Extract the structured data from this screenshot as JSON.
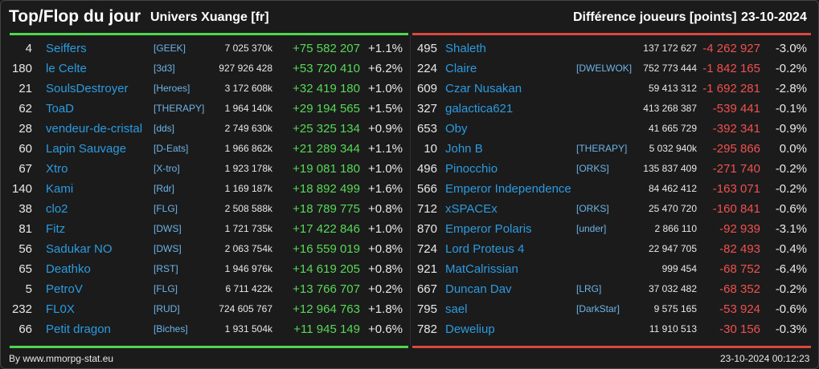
{
  "header": {
    "title": "Top/Flop du jour",
    "universe": "Univers Xuange [fr]",
    "metric": "Différence joueurs [points]",
    "date": "23-10-2024"
  },
  "colors": {
    "gain": "#58d858",
    "loss": "#f05050",
    "name": "#2b9be0",
    "top_bar": "#4fd64f",
    "flop_bar": "#d9483e"
  },
  "top": [
    {
      "rank": "4",
      "name": "Seiffers",
      "alliance": "[GEEK]",
      "points": "7 025 370k",
      "diff": "+75 582 207",
      "pct": "+1.1%"
    },
    {
      "rank": "180",
      "name": "le Celte",
      "alliance": "[3d3]",
      "points": "927 926 428",
      "diff": "+53 720 410",
      "pct": "+6.2%"
    },
    {
      "rank": "21",
      "name": "SoulsDestroyer",
      "alliance": "[Heroes]",
      "points": "3 172 608k",
      "diff": "+32 419 180",
      "pct": "+1.0%"
    },
    {
      "rank": "62",
      "name": "ToaD",
      "alliance": "[THERAPY]",
      "points": "1 964 140k",
      "diff": "+29 194 565",
      "pct": "+1.5%"
    },
    {
      "rank": "28",
      "name": "vendeur-de-cristal",
      "alliance": "[dds]",
      "points": "2 749 630k",
      "diff": "+25 325 134",
      "pct": "+0.9%"
    },
    {
      "rank": "60",
      "name": "Lapin Sauvage",
      "alliance": "[D-Eats]",
      "points": "1 966 862k",
      "diff": "+21 289 344",
      "pct": "+1.1%"
    },
    {
      "rank": "67",
      "name": "Xtro",
      "alliance": "[X-tro]",
      "points": "1 923 178k",
      "diff": "+19 081 180",
      "pct": "+1.0%"
    },
    {
      "rank": "140",
      "name": "Kami",
      "alliance": "[Rdr]",
      "points": "1 169 187k",
      "diff": "+18 892 499",
      "pct": "+1.6%"
    },
    {
      "rank": "38",
      "name": "clo2",
      "alliance": "[FLG]",
      "points": "2 508 588k",
      "diff": "+18 789 775",
      "pct": "+0.8%"
    },
    {
      "rank": "81",
      "name": "Fitz",
      "alliance": "[DWS]",
      "points": "1 721 735k",
      "diff": "+17 422 846",
      "pct": "+1.0%"
    },
    {
      "rank": "56",
      "name": "Sadukar NO",
      "alliance": "[DWS]",
      "points": "2 063 754k",
      "diff": "+16 559 019",
      "pct": "+0.8%"
    },
    {
      "rank": "65",
      "name": "Deathko",
      "alliance": "[RST]",
      "points": "1 946 976k",
      "diff": "+14 619 205",
      "pct": "+0.8%"
    },
    {
      "rank": "5",
      "name": "PetroV",
      "alliance": "[FLG]",
      "points": "6 711 422k",
      "diff": "+13 766 707",
      "pct": "+0.2%"
    },
    {
      "rank": "232",
      "name": "FL0X",
      "alliance": "[RUD]",
      "points": "724 605 767",
      "diff": "+12 964 763",
      "pct": "+1.8%"
    },
    {
      "rank": "66",
      "name": "Petit dragon",
      "alliance": "[Biches]",
      "points": "1 931 504k",
      "diff": "+11 945 149",
      "pct": "+0.6%"
    }
  ],
  "flop": [
    {
      "rank": "495",
      "name": "Shaleth",
      "alliance": "",
      "points": "137 172 627",
      "diff": "-4 262 927",
      "pct": "-3.0%"
    },
    {
      "rank": "224",
      "name": "Claire",
      "alliance": "[DWELWOK]",
      "points": "752 773 444",
      "diff": "-1 842 165",
      "pct": "-0.2%"
    },
    {
      "rank": "609",
      "name": "Czar Nusakan",
      "alliance": "",
      "points": "59 413 312",
      "diff": "-1 692 281",
      "pct": "-2.8%"
    },
    {
      "rank": "327",
      "name": "galactica621",
      "alliance": "",
      "points": "413 268 387",
      "diff": "-539 441",
      "pct": "-0.1%"
    },
    {
      "rank": "653",
      "name": "Oby",
      "alliance": "",
      "points": "41 665 729",
      "diff": "-392 341",
      "pct": "-0.9%"
    },
    {
      "rank": "10",
      "name": "John B",
      "alliance": "[THERAPY]",
      "points": "5 032 940k",
      "diff": "-295 866",
      "pct": "0.0%"
    },
    {
      "rank": "496",
      "name": "Pinocchio",
      "alliance": "[ORKS]",
      "points": "135 837 409",
      "diff": "-271 740",
      "pct": "-0.2%"
    },
    {
      "rank": "566",
      "name": "Emperor Independence",
      "alliance": "",
      "points": "84 462 412",
      "diff": "-163 071",
      "pct": "-0.2%"
    },
    {
      "rank": "712",
      "name": "xSPACEx",
      "alliance": "[ORKS]",
      "points": "25 470 720",
      "diff": "-160 841",
      "pct": "-0.6%"
    },
    {
      "rank": "870",
      "name": "Emperor Polaris",
      "alliance": "[under]",
      "points": "2 866 110",
      "diff": "-92 939",
      "pct": "-3.1%"
    },
    {
      "rank": "724",
      "name": "Lord Proteus 4",
      "alliance": "",
      "points": "22 947 705",
      "diff": "-82 493",
      "pct": "-0.4%"
    },
    {
      "rank": "921",
      "name": "MatCalrissian",
      "alliance": "",
      "points": "999 454",
      "diff": "-68 752",
      "pct": "-6.4%"
    },
    {
      "rank": "667",
      "name": "Duncan Dav",
      "alliance": "[LRG]",
      "points": "37 032 482",
      "diff": "-68 352",
      "pct": "-0.2%"
    },
    {
      "rank": "795",
      "name": "sael",
      "alliance": "[DarkStar]",
      "points": "9 575 165",
      "diff": "-53 924",
      "pct": "-0.6%"
    },
    {
      "rank": "782",
      "name": "Deweliup",
      "alliance": "",
      "points": "11 910 513",
      "diff": "-30 156",
      "pct": "-0.3%"
    }
  ],
  "footer": {
    "credit": "By www.mmorpg-stat.eu",
    "timestamp": "23-10-2024 00:12:23"
  }
}
